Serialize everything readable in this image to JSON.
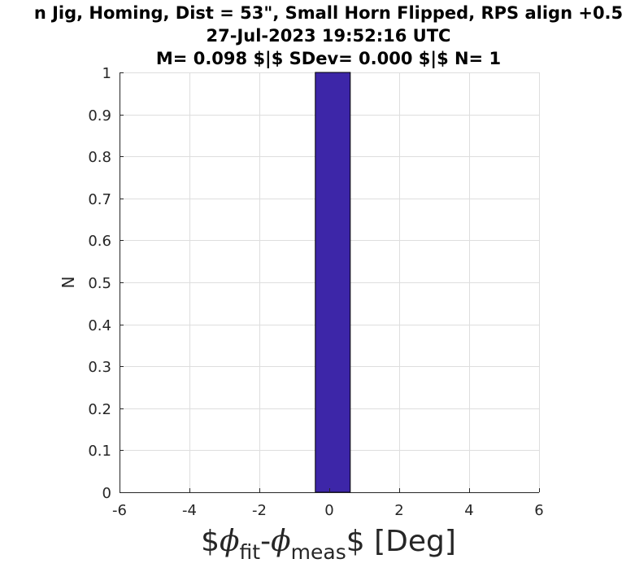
{
  "chart_data": {
    "type": "bar",
    "title_lines": [
      "n Jig, Homing, Dist = 53\", Small Horn Flipped, RPS align +0.5",
      "27-Jul-2023 19:52:16 UTC",
      "M= 0.098 $|$ SDev= 0.000 $|$ N= 1"
    ],
    "xlabel": {
      "prefix": "$",
      "sym1": "ϕ",
      "sub1": "fit",
      "dash": "-",
      "sym2": "ϕ",
      "sub2": "meas",
      "suffix": "$ [Deg]"
    },
    "ylabel": "N",
    "xlim": [
      -6,
      6
    ],
    "ylim": [
      0,
      1
    ],
    "xticks": [
      -6,
      -4,
      -2,
      0,
      2,
      4,
      6
    ],
    "xtick_labels": [
      "-6",
      "-4",
      "-2",
      "0",
      "2",
      "4",
      "6"
    ],
    "yticks": [
      0,
      0.1,
      0.2,
      0.3,
      0.4,
      0.5,
      0.6,
      0.7,
      0.8,
      0.9,
      1
    ],
    "ytick_labels": [
      "0",
      "0.1",
      "0.2",
      "0.3",
      "0.4",
      "0.5",
      "0.6",
      "0.7",
      "0.8",
      "0.9",
      "1"
    ],
    "grid": true,
    "bars": [
      {
        "x_start": -0.4,
        "x_end": 0.6,
        "value": 1
      }
    ],
    "bar_color": "#3d26a8",
    "bar_edge_color": "#000000"
  }
}
